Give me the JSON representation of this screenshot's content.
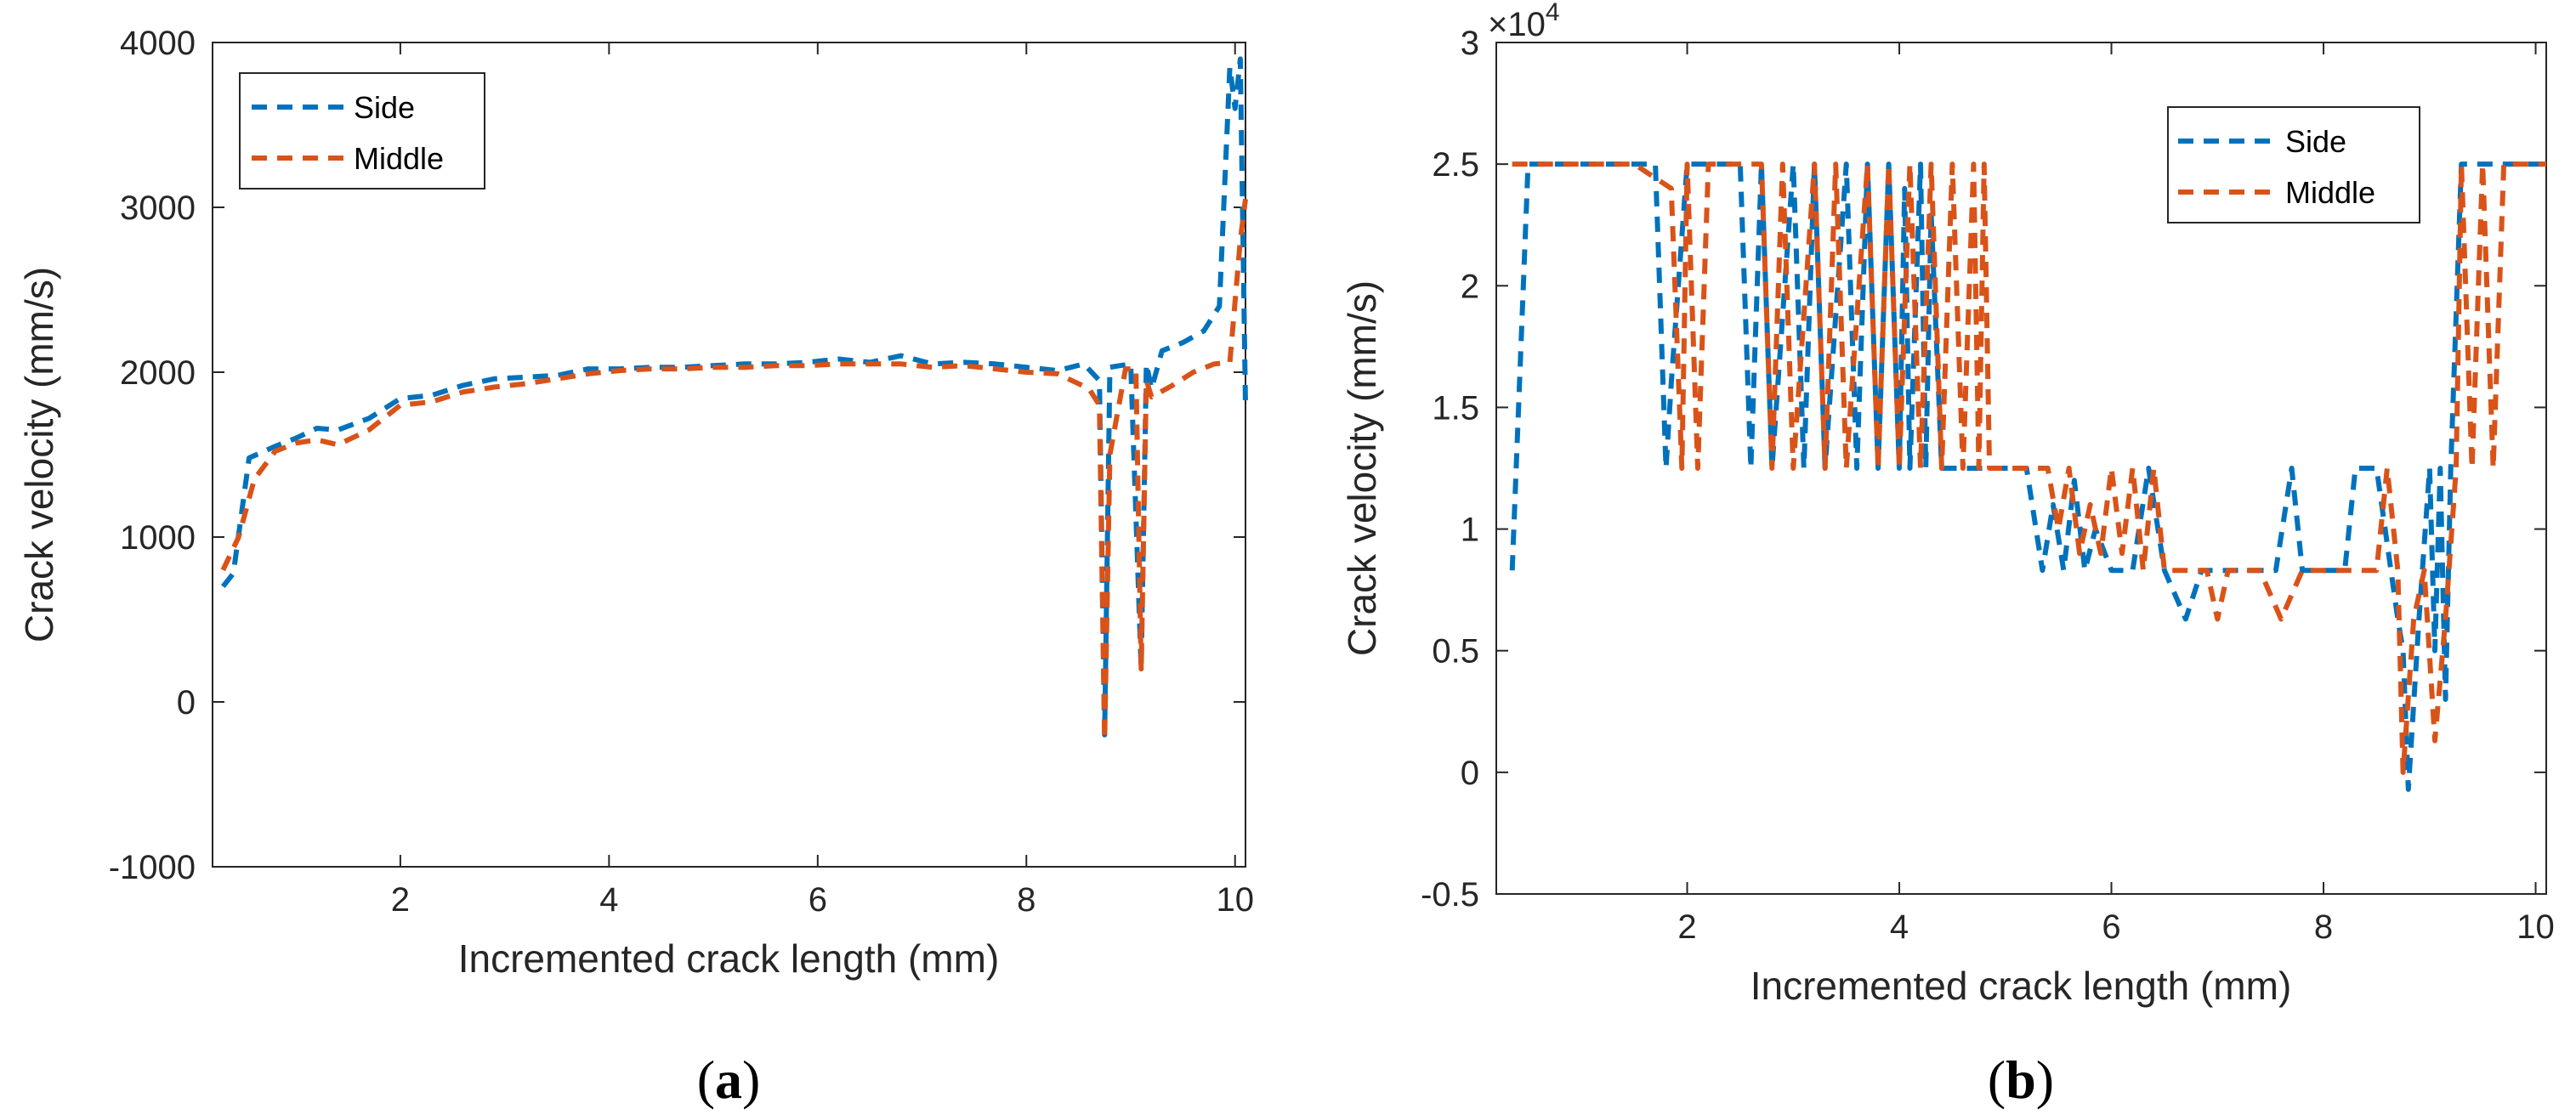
{
  "colors": {
    "side": "#0072BD",
    "middle": "#D95319",
    "axis": "#262626"
  },
  "chart_data": [
    {
      "type": "line",
      "panel": "a",
      "caption_open": "(",
      "caption_letter": "a",
      "caption_close": ")",
      "xlabel": "Incremented crack length (mm)",
      "ylabel": "Crack velocity (mm/s)",
      "xlim": [
        0.2,
        10.1
      ],
      "ylim": [
        -1000,
        4000
      ],
      "xticks": [
        2,
        4,
        6,
        8,
        10
      ],
      "yticks": [
        -1000,
        0,
        1000,
        2000,
        3000,
        4000
      ],
      "xtick_labels": [
        "2",
        "4",
        "6",
        "8",
        "10"
      ],
      "ytick_labels": [
        "-1000",
        "0",
        "1000",
        "2000",
        "3000",
        "4000"
      ],
      "legend_position": "top-left",
      "series": [
        {
          "name": "Side",
          "x": [
            0.3,
            0.4,
            0.55,
            0.8,
            1.0,
            1.2,
            1.4,
            1.7,
            2.0,
            2.3,
            2.6,
            2.9,
            3.2,
            3.5,
            3.8,
            4.1,
            4.4,
            4.7,
            5.0,
            5.3,
            5.6,
            5.9,
            6.2,
            6.5,
            6.8,
            7.1,
            7.4,
            7.7,
            8.0,
            8.3,
            8.55,
            8.7,
            8.75,
            8.8,
            8.9,
            9.0,
            9.1,
            9.15,
            9.2,
            9.3,
            9.5,
            9.7,
            9.85,
            9.95,
            10.0,
            10.05,
            10.1
          ],
          "y": [
            700,
            780,
            1480,
            1550,
            1600,
            1660,
            1650,
            1720,
            1840,
            1860,
            1920,
            1960,
            1970,
            1980,
            2020,
            2020,
            2030,
            2030,
            2040,
            2050,
            2050,
            2060,
            2080,
            2060,
            2100,
            2050,
            2060,
            2050,
            2030,
            2010,
            2050,
            1950,
            -200,
            2030,
            2040,
            2050,
            200,
            2050,
            1900,
            2130,
            2180,
            2250,
            2400,
            3850,
            3600,
            3900,
            1800
          ]
        },
        {
          "name": "Middle",
          "x": [
            0.3,
            0.45,
            0.6,
            0.8,
            1.0,
            1.2,
            1.4,
            1.7,
            2.0,
            2.3,
            2.6,
            2.9,
            3.2,
            3.5,
            3.8,
            4.1,
            4.4,
            4.7,
            5.0,
            5.3,
            5.6,
            5.9,
            6.2,
            6.5,
            6.8,
            7.1,
            7.4,
            7.7,
            8.0,
            8.3,
            8.6,
            8.7,
            8.75,
            8.8,
            8.95,
            9.05,
            9.1,
            9.15,
            9.2,
            9.4,
            9.6,
            9.8,
            9.95,
            10.05,
            10.1
          ],
          "y": [
            800,
            1000,
            1350,
            1520,
            1570,
            1590,
            1560,
            1650,
            1800,
            1820,
            1880,
            1910,
            1930,
            1960,
            1990,
            2010,
            2020,
            2020,
            2030,
            2030,
            2040,
            2040,
            2050,
            2050,
            2050,
            2030,
            2040,
            2020,
            2000,
            1990,
            1900,
            1800,
            -230,
            1500,
            2020,
            2020,
            200,
            1950,
            1850,
            1920,
            2000,
            2050,
            2060,
            2800,
            3050
          ]
        }
      ]
    },
    {
      "type": "line",
      "panel": "b",
      "caption_open": "(",
      "caption_letter": "b",
      "caption_close": ")",
      "xlabel": "Incremented crack length (mm)",
      "ylabel": "Crack velocity (mm/s)",
      "exponent_base": "×10",
      "exponent_power": "4",
      "xlim": [
        0.2,
        10.1
      ],
      "ylim": [
        -0.5,
        3
      ],
      "xticks": [
        2,
        4,
        6,
        8,
        10
      ],
      "yticks": [
        -0.5,
        0,
        0.5,
        1,
        1.5,
        2,
        2.5,
        3
      ],
      "xtick_labels": [
        "2",
        "4",
        "6",
        "8",
        "10"
      ],
      "ytick_labels": [
        "-0.5",
        "0",
        "0.5",
        "1",
        "1.5",
        "2",
        "2.5",
        "3"
      ],
      "legend_position": "top-right",
      "series": [
        {
          "name": "Side",
          "x": [
            0.35,
            0.5,
            1.0,
            1.5,
            1.7,
            1.8,
            1.85,
            2.0,
            2.5,
            2.6,
            2.7,
            2.8,
            3.0,
            3.1,
            3.2,
            3.3,
            3.5,
            3.6,
            3.7,
            3.8,
            3.9,
            4.0,
            4.05,
            4.1,
            4.2,
            4.25,
            4.3,
            4.4,
            4.5,
            4.6,
            4.7,
            4.8,
            5.0,
            5.2,
            5.35,
            5.45,
            5.55,
            5.65,
            5.75,
            5.85,
            6.0,
            6.2,
            6.35,
            6.5,
            6.7,
            6.85,
            7.0,
            7.2,
            7.4,
            7.55,
            7.7,
            7.8,
            7.9,
            8.0,
            8.2,
            8.3,
            8.4,
            8.5,
            8.7,
            8.75,
            8.8,
            8.9,
            9.0,
            9.05,
            9.1,
            9.15,
            9.2,
            9.3,
            9.4,
            9.5,
            9.7,
            9.9,
            10.1
          ],
          "y": [
            0.83,
            2.5,
            2.5,
            2.5,
            2.5,
            1.25,
            1.6,
            2.5,
            2.5,
            1.25,
            2.5,
            1.25,
            2.5,
            1.25,
            2.5,
            1.25,
            2.5,
            1.25,
            2.5,
            1.25,
            2.5,
            1.25,
            2.4,
            1.25,
            2.5,
            1.25,
            2.3,
            1.25,
            1.25,
            1.25,
            1.25,
            1.25,
            1.25,
            1.25,
            0.83,
            1.1,
            0.83,
            1.2,
            0.83,
            1.0,
            0.83,
            0.83,
            1.25,
            0.83,
            0.63,
            0.83,
            0.83,
            0.83,
            0.83,
            0.83,
            1.25,
            0.83,
            0.83,
            0.83,
            0.83,
            1.25,
            1.25,
            1.25,
            0.63,
            0.5,
            -0.07,
            0.63,
            1.25,
            0.5,
            1.25,
            0.3,
            1.25,
            2.5,
            2.5,
            2.5,
            2.5,
            2.5,
            2.5
          ]
        },
        {
          "name": "Middle",
          "x": [
            0.35,
            0.6,
            1.0,
            1.5,
            1.85,
            1.95,
            2.0,
            2.1,
            2.2,
            2.7,
            2.8,
            2.9,
            3.0,
            3.2,
            3.3,
            3.4,
            3.5,
            3.7,
            3.8,
            3.9,
            4.0,
            4.1,
            4.2,
            4.3,
            4.4,
            4.5,
            4.6,
            4.7,
            4.75,
            4.8,
            4.85,
            5.0,
            5.2,
            5.4,
            5.5,
            5.6,
            5.7,
            5.8,
            5.9,
            6.0,
            6.1,
            6.2,
            6.3,
            6.4,
            6.5,
            6.7,
            6.9,
            7.0,
            7.1,
            7.2,
            7.4,
            7.6,
            7.8,
            8.0,
            8.3,
            8.5,
            8.6,
            8.7,
            8.75,
            8.85,
            8.95,
            9.05,
            9.15,
            9.25,
            9.3,
            9.4,
            9.5,
            9.6,
            9.7,
            9.8,
            10.1
          ],
          "y": [
            2.5,
            2.5,
            2.5,
            2.5,
            2.4,
            1.25,
            2.5,
            1.25,
            2.5,
            2.5,
            1.25,
            2.5,
            1.25,
            2.5,
            1.25,
            2.5,
            1.25,
            2.5,
            1.25,
            2.5,
            1.25,
            2.5,
            1.25,
            2.5,
            1.25,
            2.5,
            1.25,
            2.5,
            1.25,
            2.5,
            1.25,
            1.25,
            1.25,
            1.25,
            1.0,
            1.25,
            0.9,
            1.1,
            0.9,
            1.25,
            0.9,
            1.25,
            0.83,
            1.25,
            0.83,
            0.83,
            0.83,
            0.63,
            0.83,
            0.83,
            0.83,
            0.63,
            0.83,
            0.83,
            0.83,
            0.83,
            1.25,
            0.83,
            0.0,
            0.63,
            0.83,
            0.13,
            0.63,
            1.25,
            2.5,
            1.25,
            2.5,
            1.25,
            2.5,
            2.5,
            2.5
          ]
        }
      ]
    }
  ]
}
